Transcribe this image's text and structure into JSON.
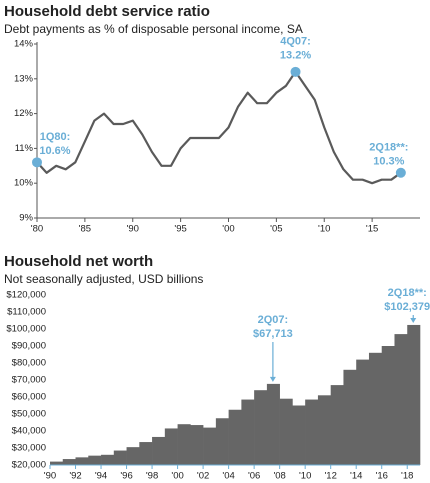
{
  "chart_data": [
    {
      "type": "line",
      "title": "Household debt service ratio",
      "subtitle": "Debt payments as % of disposable personal income, SA",
      "x": [
        1980,
        1981,
        1982,
        1983,
        1984,
        1985,
        1986,
        1987,
        1988,
        1989,
        1990,
        1991,
        1992,
        1993,
        1994,
        1995,
        1996,
        1997,
        1998,
        1999,
        2000,
        2001,
        2002,
        2003,
        2004,
        2005,
        2006,
        2007,
        2008,
        2009,
        2010,
        2011,
        2012,
        2013,
        2014,
        2015,
        2016,
        2017,
        2018
      ],
      "values": [
        10.6,
        10.3,
        10.5,
        10.4,
        10.6,
        11.2,
        11.8,
        12.0,
        11.7,
        11.7,
        11.8,
        11.4,
        10.9,
        10.5,
        10.5,
        11.0,
        11.3,
        11.3,
        11.3,
        11.3,
        11.6,
        12.2,
        12.6,
        12.3,
        12.3,
        12.6,
        12.8,
        13.2,
        12.8,
        12.4,
        11.6,
        10.9,
        10.4,
        10.1,
        10.1,
        10.0,
        10.1,
        10.1,
        10.3
      ],
      "color": "#5a5a5a",
      "marker_color": "#6aaed6",
      "xlim": [
        1980,
        2020
      ],
      "ylim": [
        9,
        14
      ],
      "xticks": [
        {
          "value": 1980,
          "label": "'80"
        },
        {
          "value": 1985,
          "label": "'85"
        },
        {
          "value": 1990,
          "label": "'90"
        },
        {
          "value": 1995,
          "label": "'95"
        },
        {
          "value": 2000,
          "label": "'00"
        },
        {
          "value": 2005,
          "label": "'05"
        },
        {
          "value": 2010,
          "label": "'10"
        },
        {
          "value": 2015,
          "label": "'15"
        }
      ],
      "yticks": [
        {
          "value": 9,
          "label": "9%"
        },
        {
          "value": 10,
          "label": "10%"
        },
        {
          "value": 11,
          "label": "11%"
        },
        {
          "value": 12,
          "label": "12%"
        },
        {
          "value": 13,
          "label": "13%"
        },
        {
          "value": 14,
          "label": "14%"
        }
      ],
      "annotations": [
        {
          "label": "1Q80:",
          "value_label": "10.6%",
          "x": 1980
        },
        {
          "label": "4Q07:",
          "value_label": "13.2%",
          "x": 2007
        },
        {
          "label": "2Q18**:",
          "value_label": "10.3%",
          "x": 2018
        }
      ]
    },
    {
      "type": "bar",
      "title": "Household net worth",
      "subtitle": "Not seasonally adjusted, USD billions",
      "x": [
        1990,
        1991,
        1992,
        1993,
        1994,
        1995,
        1996,
        1997,
        1998,
        1999,
        2000,
        2001,
        2002,
        2003,
        2004,
        2005,
        2006,
        2007,
        2008,
        2009,
        2010,
        2011,
        2012,
        2013,
        2014,
        2015,
        2016,
        2017,
        2018
      ],
      "values": [
        22000,
        23500,
        24500,
        25500,
        26000,
        28500,
        30500,
        33500,
        36500,
        41500,
        44000,
        43500,
        42000,
        47500,
        52500,
        58500,
        64000,
        67713,
        59000,
        55000,
        58500,
        61000,
        67000,
        76000,
        82000,
        86000,
        90000,
        97000,
        102379
      ],
      "color": "#666666",
      "annotation_color": "#6aaed6",
      "xlim": [
        1990,
        2019
      ],
      "ylim": [
        20000,
        120000
      ],
      "xticks": [
        {
          "value": 1990,
          "label": "'90"
        },
        {
          "value": 1992,
          "label": "'92"
        },
        {
          "value": 1994,
          "label": "'94"
        },
        {
          "value": 1996,
          "label": "'96"
        },
        {
          "value": 1998,
          "label": "'98"
        },
        {
          "value": 2000,
          "label": "'00"
        },
        {
          "value": 2002,
          "label": "'02"
        },
        {
          "value": 2004,
          "label": "'04"
        },
        {
          "value": 2006,
          "label": "'06"
        },
        {
          "value": 2008,
          "label": "'08"
        },
        {
          "value": 2010,
          "label": "'10"
        },
        {
          "value": 2012,
          "label": "'12"
        },
        {
          "value": 2014,
          "label": "'14"
        },
        {
          "value": 2016,
          "label": "'16"
        },
        {
          "value": 2018,
          "label": "'18"
        }
      ],
      "yticks": [
        {
          "value": 20000,
          "label": "$20,000"
        },
        {
          "value": 30000,
          "label": "$30,000"
        },
        {
          "value": 40000,
          "label": "$40,000"
        },
        {
          "value": 50000,
          "label": "$50,000"
        },
        {
          "value": 60000,
          "label": "$60,000"
        },
        {
          "value": 70000,
          "label": "$70,000"
        },
        {
          "value": 80000,
          "label": "$80,000"
        },
        {
          "value": 90000,
          "label": "$90,000"
        },
        {
          "value": 100000,
          "label": "$100,000"
        },
        {
          "value": 110000,
          "label": "$110,000"
        },
        {
          "value": 120000,
          "label": "$120,000"
        }
      ],
      "annotations": [
        {
          "label": "2Q07:",
          "value_label": "$67,713",
          "x": 2007
        },
        {
          "label": "2Q18**:",
          "value_label": "$102,379",
          "x": 2018
        }
      ]
    }
  ]
}
